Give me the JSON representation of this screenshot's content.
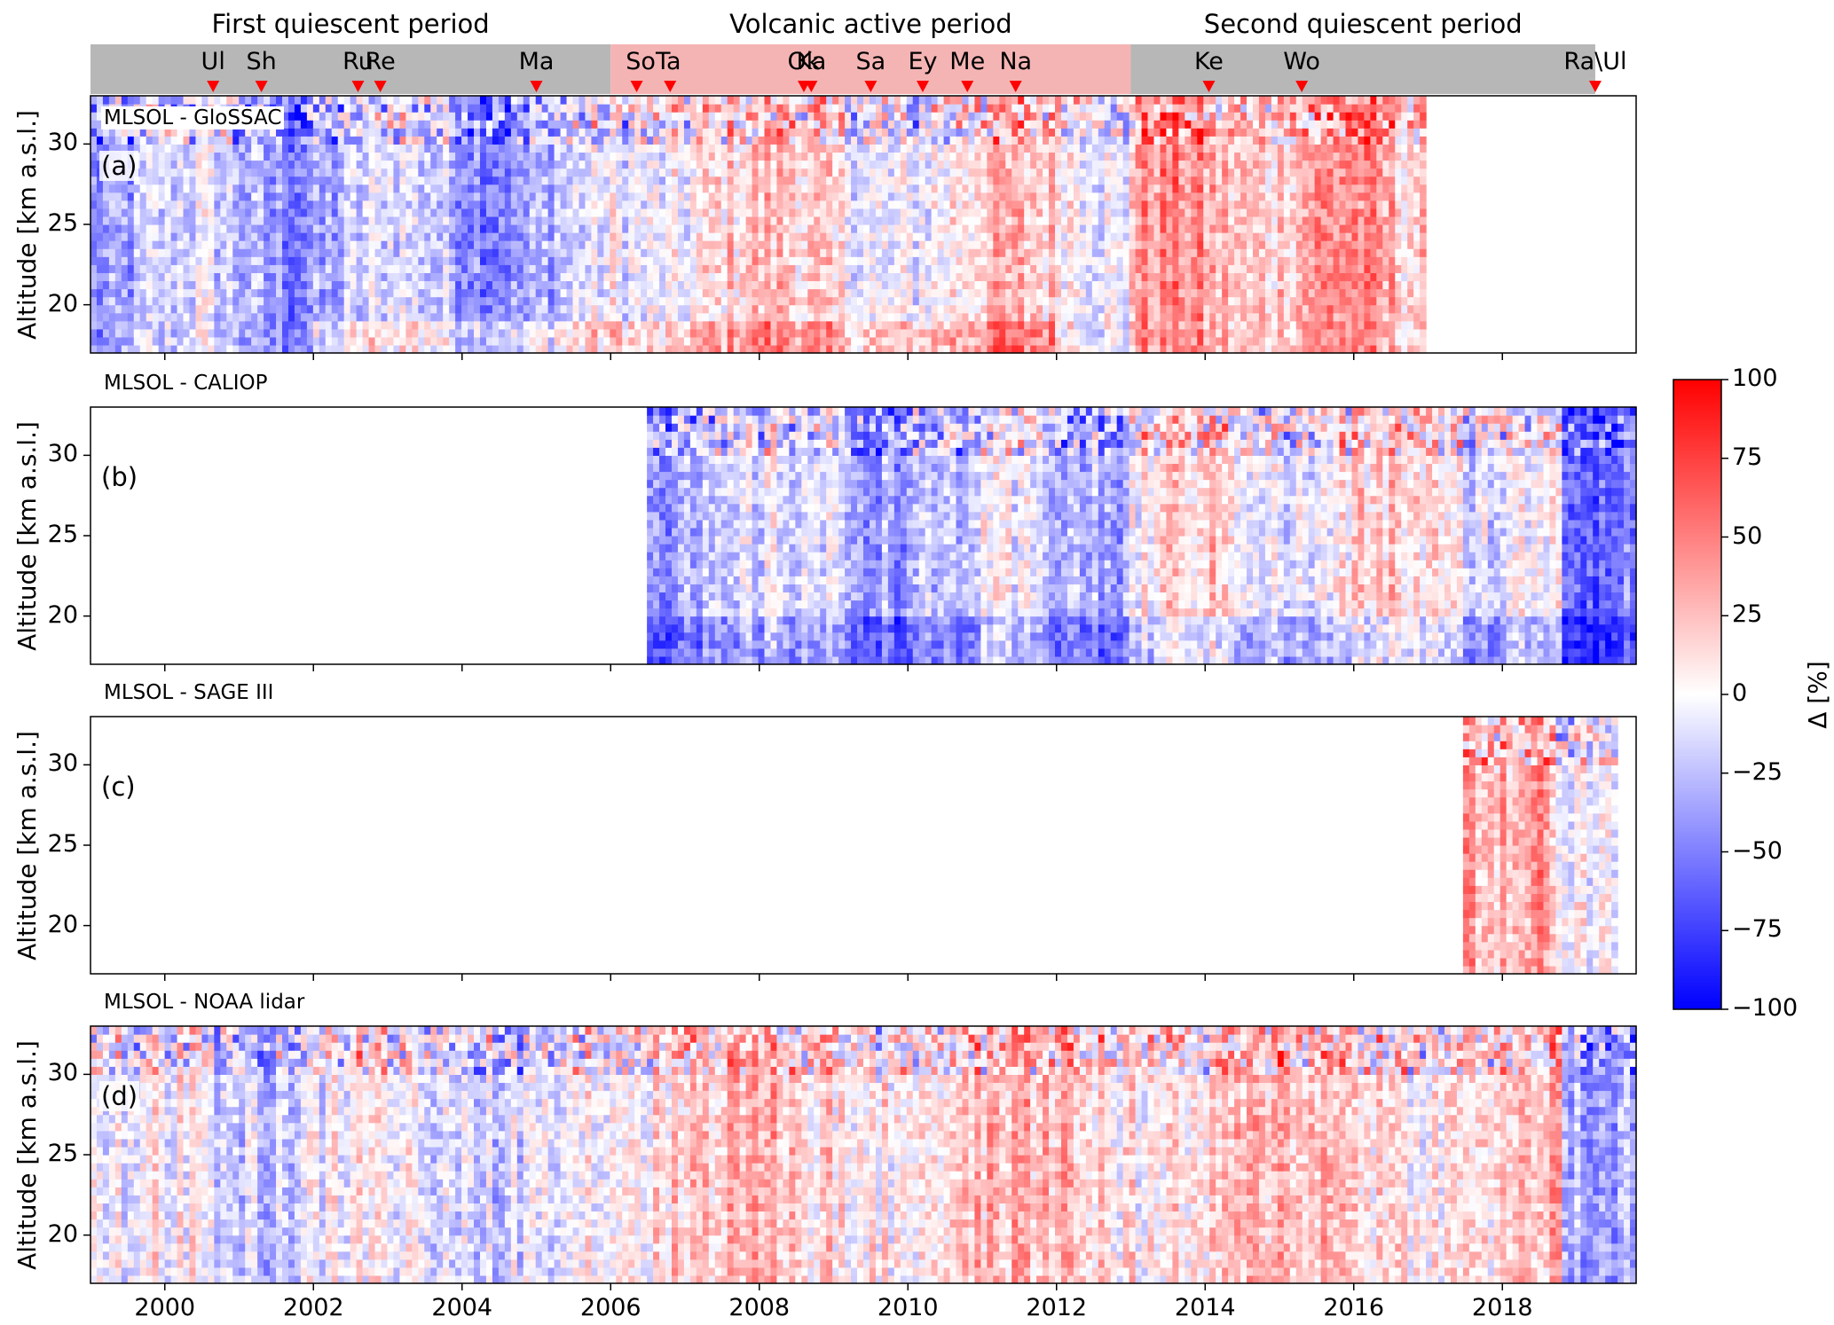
{
  "figure": {
    "periods": [
      {
        "label": "First quiescent period",
        "start": 1999.0,
        "end": 2006.0,
        "color": "#b7b7b7"
      },
      {
        "label": "Volcanic active period",
        "start": 2006.0,
        "end": 2013.0,
        "color": "#f5b4b4"
      },
      {
        "label": "Second quiescent period",
        "start": 2013.0,
        "end": 2019.25,
        "color": "#b7b7b7"
      }
    ],
    "eruptions": [
      {
        "label": "Ul",
        "t": 2000.65
      },
      {
        "label": "Sh",
        "t": 2001.3
      },
      {
        "label": "Ru",
        "t": 2002.6
      },
      {
        "label": "Re",
        "t": 2002.9
      },
      {
        "label": "Ma",
        "t": 2005.0
      },
      {
        "label": "SoTa",
        "t": 2006.35,
        "t2": 2006.8
      },
      {
        "label": "Ok",
        "t": 2008.6
      },
      {
        "label": "Ka",
        "t": 2008.7
      },
      {
        "label": "Sa",
        "t": 2009.5
      },
      {
        "label": "Ey",
        "t": 2010.2
      },
      {
        "label": "Me",
        "t": 2010.8
      },
      {
        "label": "Na",
        "t": 2011.45
      },
      {
        "label": "Ke",
        "t": 2014.05
      },
      {
        "label": "Wo",
        "t": 2015.3
      },
      {
        "label": "Ra\\Ul",
        "t": 2019.25
      }
    ],
    "marker_color": "#ff0000"
  },
  "panels": [
    {
      "title": "MLSOL - GloSSAC",
      "letter": "(a)",
      "ylabel": "Altitude [km a.s.l.]",
      "data_start": 1999.0,
      "data_end": 2017.0,
      "title_inside": true
    },
    {
      "title": "MLSOL - CALIOP",
      "letter": "(b)",
      "ylabel": "Altitude [km a.s.l.]",
      "data_start": 2006.45,
      "data_end": 2019.8,
      "title_inside": false
    },
    {
      "title": "MLSOL - SAGE III",
      "letter": "(c)",
      "ylabel": "Altitude [km a.s.l.]",
      "data_start": 2017.45,
      "data_end": 2019.55,
      "title_inside": false
    },
    {
      "title": "MLSOL - NOAA lidar",
      "letter": "(d)",
      "ylabel": "Altitude [km a.s.l.]",
      "data_start": 1999.0,
      "data_end": 2019.8,
      "title_inside": false
    }
  ],
  "chart_data": {
    "type": "heatmap",
    "x_axis": {
      "range": [
        1999.0,
        2019.8
      ],
      "ticks": [
        "2000",
        "2002",
        "2004",
        "2006",
        "2008",
        "2010",
        "2012",
        "2014",
        "2016",
        "2018"
      ]
    },
    "y_axis": {
      "label": "Altitude [km a.s.l.]",
      "range": [
        17.0,
        33.0
      ],
      "ticks": [
        "20",
        "25",
        "30"
      ]
    },
    "colorbar": {
      "label": "Δ [%]",
      "range": [
        -100,
        100
      ],
      "ticks": [
        "100",
        "75",
        "50",
        "25",
        "0",
        "−25",
        "−50",
        "−75",
        "−100"
      ],
      "colormap": "bwr"
    }
  }
}
